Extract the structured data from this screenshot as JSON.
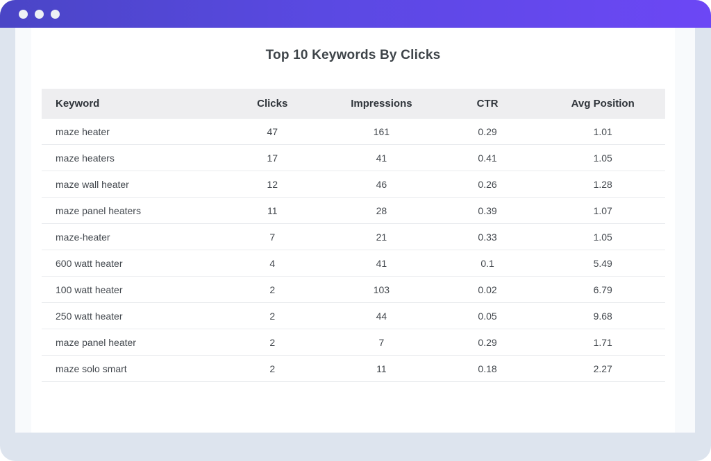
{
  "colors": {
    "outer_background": "#dde4ee",
    "titlebar_gradient_start": "#4a45c6",
    "titlebar_gradient_end": "#6c47f5",
    "window_background": "#f8fafc",
    "sheet_background": "#ffffff",
    "header_row_background": "#eeeef0",
    "row_divider": "#e9ebee",
    "title_text": "#3e4449",
    "header_text": "#2f343a",
    "cell_text": "#42474d",
    "window_dot": "#eef1f5"
  },
  "titlebar": {
    "dots": [
      "window-dot",
      "window-dot",
      "window-dot"
    ]
  },
  "main": {
    "title": "Top 10 Keywords By Clicks",
    "table": {
      "columns": [
        {
          "label": "Keyword",
          "align": "left"
        },
        {
          "label": "Clicks",
          "align": "center"
        },
        {
          "label": "Impressions",
          "align": "center"
        },
        {
          "label": "CTR",
          "align": "center"
        },
        {
          "label": "Avg Position",
          "align": "center"
        }
      ],
      "rows": [
        {
          "keyword": "maze heater",
          "clicks": "47",
          "impressions": "161",
          "ctr": "0.29",
          "avg_position": "1.01"
        },
        {
          "keyword": "maze heaters",
          "clicks": "17",
          "impressions": "41",
          "ctr": "0.41",
          "avg_position": "1.05"
        },
        {
          "keyword": "maze wall heater",
          "clicks": "12",
          "impressions": "46",
          "ctr": "0.26",
          "avg_position": "1.28"
        },
        {
          "keyword": "maze panel heaters",
          "clicks": "11",
          "impressions": "28",
          "ctr": "0.39",
          "avg_position": "1.07"
        },
        {
          "keyword": "maze-heater",
          "clicks": "7",
          "impressions": "21",
          "ctr": "0.33",
          "avg_position": "1.05"
        },
        {
          "keyword": "600 watt heater",
          "clicks": "4",
          "impressions": "41",
          "ctr": "0.1",
          "avg_position": "5.49"
        },
        {
          "keyword": "100 watt heater",
          "clicks": "2",
          "impressions": "103",
          "ctr": "0.02",
          "avg_position": "6.79"
        },
        {
          "keyword": "250 watt heater",
          "clicks": "2",
          "impressions": "44",
          "ctr": "0.05",
          "avg_position": "9.68"
        },
        {
          "keyword": "maze panel heater",
          "clicks": "2",
          "impressions": "7",
          "ctr": "0.29",
          "avg_position": "1.71"
        },
        {
          "keyword": "maze solo smart",
          "clicks": "2",
          "impressions": "11",
          "ctr": "0.18",
          "avg_position": "2.27"
        }
      ]
    }
  }
}
